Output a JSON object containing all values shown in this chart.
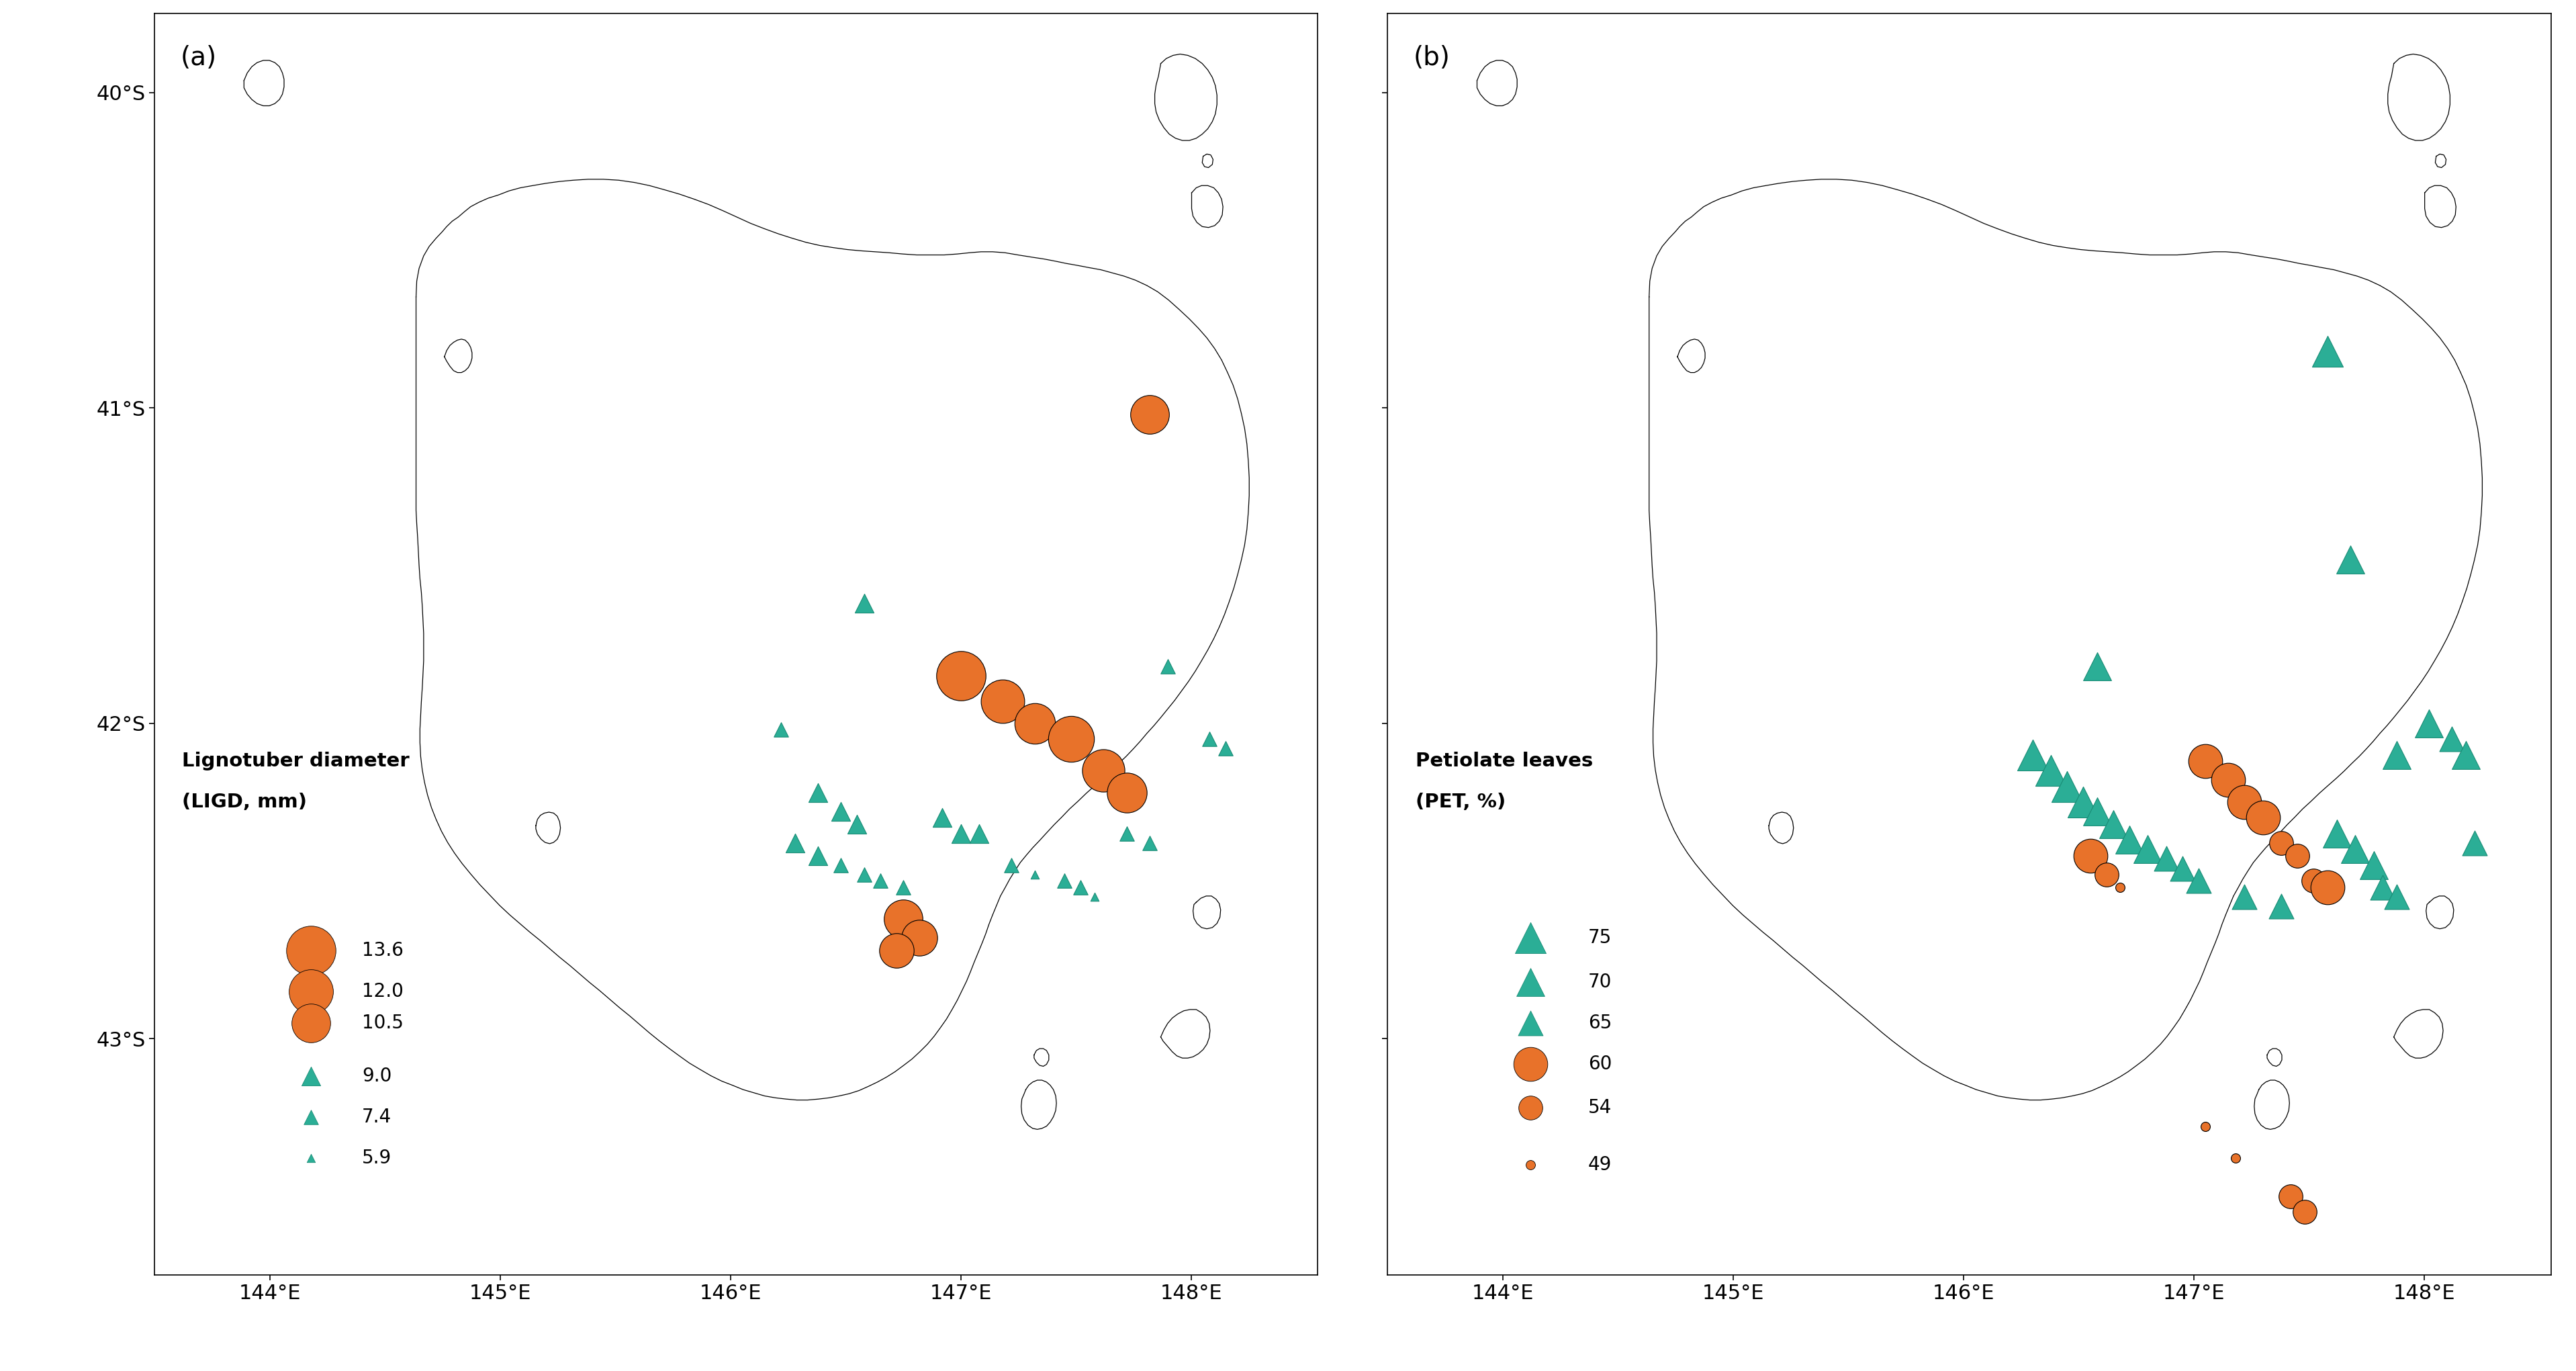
{
  "panel_a_label": "(a)",
  "panel_b_label": "(b)",
  "legend_a_title_line1": "Lignotuber diameter",
  "legend_a_title_line2": "(LIGD, mm)",
  "legend_b_title_line1": "Petiolate leaves",
  "legend_b_title_line2": "(PET, %)",
  "legend_a_values": [
    13.6,
    12.0,
    10.5,
    9.0,
    7.4,
    5.9
  ],
  "legend_b_values": [
    75,
    70,
    65,
    60,
    54,
    49
  ],
  "orange_color": "#E8722A",
  "teal_color": "#2BAE96",
  "teal_dark": "#1A8C76",
  "outline_color": "#000000",
  "background_color": "#FFFFFF",
  "xlim": [
    143.5,
    148.55
  ],
  "ylim": [
    -43.75,
    -39.75
  ],
  "xticks": [
    144,
    145,
    146,
    147,
    148
  ],
  "yticks": [
    -40,
    -41,
    -42,
    -43
  ],
  "xlabel_labels": [
    "144°E",
    "145°E",
    "146°E",
    "147°E",
    "148°E"
  ],
  "ylabel_labels": [
    "40°S",
    "41°S",
    "42°S",
    "43°S"
  ],
  "panel_a_circles": [
    {
      "lon": 147.82,
      "lat": -41.02,
      "val": 10.5
    },
    {
      "lon": 147.0,
      "lat": -41.85,
      "val": 13.6
    },
    {
      "lon": 147.18,
      "lat": -41.93,
      "val": 11.8
    },
    {
      "lon": 147.32,
      "lat": -42.0,
      "val": 11.0
    },
    {
      "lon": 147.48,
      "lat": -42.05,
      "val": 12.5
    },
    {
      "lon": 147.62,
      "lat": -42.15,
      "val": 11.5
    },
    {
      "lon": 147.72,
      "lat": -42.22,
      "val": 10.8
    },
    {
      "lon": 146.75,
      "lat": -42.62,
      "val": 10.5
    },
    {
      "lon": 146.82,
      "lat": -42.68,
      "val": 9.8
    },
    {
      "lon": 146.72,
      "lat": -42.72,
      "val": 9.5
    }
  ],
  "panel_a_triangles": [
    {
      "lon": 146.58,
      "lat": -41.62,
      "val": 9.0
    },
    {
      "lon": 146.22,
      "lat": -42.02,
      "val": 7.4
    },
    {
      "lon": 146.38,
      "lat": -42.22,
      "val": 9.0
    },
    {
      "lon": 146.48,
      "lat": -42.28,
      "val": 9.0
    },
    {
      "lon": 146.55,
      "lat": -42.32,
      "val": 9.0
    },
    {
      "lon": 146.28,
      "lat": -42.38,
      "val": 9.0
    },
    {
      "lon": 146.38,
      "lat": -42.42,
      "val": 9.0
    },
    {
      "lon": 146.48,
      "lat": -42.45,
      "val": 7.4
    },
    {
      "lon": 146.58,
      "lat": -42.48,
      "val": 7.4
    },
    {
      "lon": 146.65,
      "lat": -42.5,
      "val": 7.4
    },
    {
      "lon": 146.75,
      "lat": -42.52,
      "val": 7.4
    },
    {
      "lon": 147.22,
      "lat": -42.45,
      "val": 7.4
    },
    {
      "lon": 147.32,
      "lat": -42.48,
      "val": 5.9
    },
    {
      "lon": 147.45,
      "lat": -42.5,
      "val": 7.4
    },
    {
      "lon": 147.52,
      "lat": -42.52,
      "val": 7.4
    },
    {
      "lon": 147.58,
      "lat": -42.55,
      "val": 5.9
    },
    {
      "lon": 147.72,
      "lat": -42.35,
      "val": 7.4
    },
    {
      "lon": 147.82,
      "lat": -42.38,
      "val": 7.4
    },
    {
      "lon": 148.08,
      "lat": -42.05,
      "val": 7.4
    },
    {
      "lon": 148.15,
      "lat": -42.08,
      "val": 7.4
    },
    {
      "lon": 147.9,
      "lat": -41.82,
      "val": 7.4
    },
    {
      "lon": 146.92,
      "lat": -42.3,
      "val": 9.0
    },
    {
      "lon": 147.0,
      "lat": -42.35,
      "val": 9.0
    },
    {
      "lon": 147.08,
      "lat": -42.35,
      "val": 9.0
    }
  ],
  "panel_b_circles": [
    {
      "lon": 147.05,
      "lat": -42.12,
      "val": 60
    },
    {
      "lon": 147.15,
      "lat": -42.18,
      "val": 60
    },
    {
      "lon": 147.22,
      "lat": -42.25,
      "val": 60
    },
    {
      "lon": 147.3,
      "lat": -42.3,
      "val": 60
    },
    {
      "lon": 147.38,
      "lat": -42.38,
      "val": 54
    },
    {
      "lon": 147.45,
      "lat": -42.42,
      "val": 54
    },
    {
      "lon": 147.52,
      "lat": -42.5,
      "val": 54
    },
    {
      "lon": 147.58,
      "lat": -42.52,
      "val": 60
    },
    {
      "lon": 146.55,
      "lat": -42.42,
      "val": 60
    },
    {
      "lon": 146.62,
      "lat": -42.48,
      "val": 54
    },
    {
      "lon": 146.68,
      "lat": -42.52,
      "val": 49
    },
    {
      "lon": 147.05,
      "lat": -43.28,
      "val": 49
    },
    {
      "lon": 147.18,
      "lat": -43.38,
      "val": 49
    },
    {
      "lon": 147.42,
      "lat": -43.5,
      "val": 54
    },
    {
      "lon": 147.48,
      "lat": -43.55,
      "val": 54
    }
  ],
  "panel_b_triangles": [
    {
      "lon": 147.58,
      "lat": -40.82,
      "val": 75
    },
    {
      "lon": 147.68,
      "lat": -41.48,
      "val": 70
    },
    {
      "lon": 146.58,
      "lat": -41.82,
      "val": 70
    },
    {
      "lon": 146.3,
      "lat": -42.1,
      "val": 75
    },
    {
      "lon": 146.38,
      "lat": -42.15,
      "val": 75
    },
    {
      "lon": 146.45,
      "lat": -42.2,
      "val": 75
    },
    {
      "lon": 146.52,
      "lat": -42.25,
      "val": 75
    },
    {
      "lon": 146.58,
      "lat": -42.28,
      "val": 70
    },
    {
      "lon": 146.65,
      "lat": -42.32,
      "val": 70
    },
    {
      "lon": 146.72,
      "lat": -42.37,
      "val": 70
    },
    {
      "lon": 146.8,
      "lat": -42.4,
      "val": 70
    },
    {
      "lon": 146.88,
      "lat": -42.43,
      "val": 65
    },
    {
      "lon": 146.95,
      "lat": -42.46,
      "val": 65
    },
    {
      "lon": 147.02,
      "lat": -42.5,
      "val": 65
    },
    {
      "lon": 147.62,
      "lat": -42.35,
      "val": 70
    },
    {
      "lon": 147.7,
      "lat": -42.4,
      "val": 70
    },
    {
      "lon": 147.78,
      "lat": -42.45,
      "val": 70
    },
    {
      "lon": 147.82,
      "lat": -42.52,
      "val": 65
    },
    {
      "lon": 147.88,
      "lat": -42.55,
      "val": 65
    },
    {
      "lon": 147.88,
      "lat": -42.1,
      "val": 70
    },
    {
      "lon": 148.02,
      "lat": -42.0,
      "val": 70
    },
    {
      "lon": 148.12,
      "lat": -42.05,
      "val": 65
    },
    {
      "lon": 148.18,
      "lat": -42.1,
      "val": 70
    },
    {
      "lon": 148.22,
      "lat": -42.38,
      "val": 65
    },
    {
      "lon": 147.22,
      "lat": -42.55,
      "val": 65
    },
    {
      "lon": 147.38,
      "lat": -42.58,
      "val": 65
    }
  ]
}
